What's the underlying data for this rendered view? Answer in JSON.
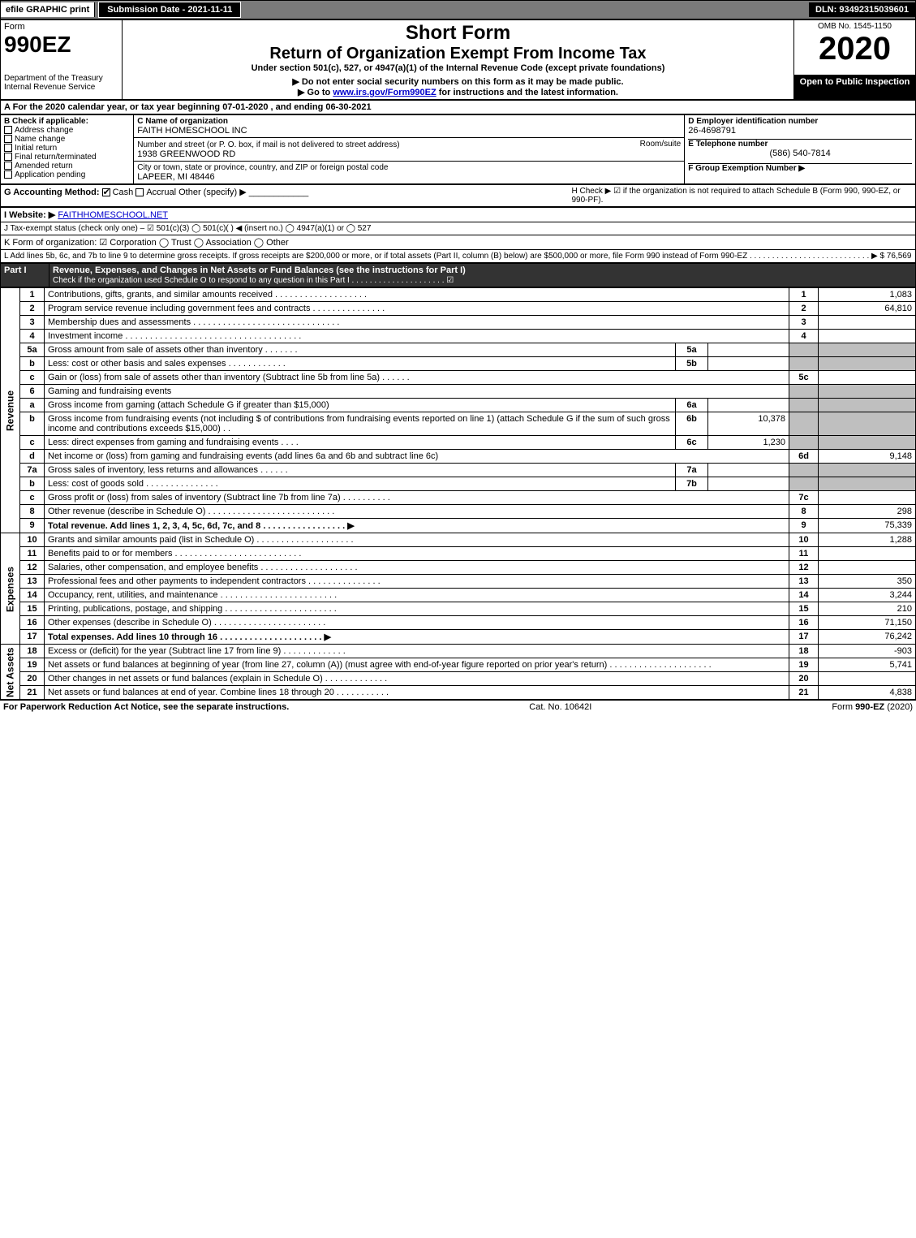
{
  "topbar": {
    "efile": "efile GRAPHIC print",
    "submission": "Submission Date - 2021-11-11",
    "dln": "DLN: 93492315039601"
  },
  "header": {
    "form_label": "Form",
    "form_no": "990EZ",
    "dept": "Department of the Treasury\nInternal Revenue Service",
    "short_form": "Short Form",
    "title": "Return of Organization Exempt From Income Tax",
    "subtitle": "Under section 501(c), 527, or 4947(a)(1) of the Internal Revenue Code (except private foundations)",
    "note1": "▶ Do not enter social security numbers on this form as it may be made public.",
    "note2": "▶ Go to www.irs.gov/Form990EZ for instructions and the latest information.",
    "omb": "OMB No. 1545-1150",
    "year": "2020",
    "open": "Open to Public Inspection"
  },
  "period": {
    "label_a": "A For the 2020 calendar year, or tax year beginning 07-01-2020 , and ending 06-30-2021"
  },
  "boxB": {
    "label": "B Check if applicable:",
    "opts": [
      "Address change",
      "Name change",
      "Initial return",
      "Final return/terminated",
      "Amended return",
      "Application pending"
    ]
  },
  "boxC": {
    "label": "C Name of organization",
    "name": "FAITH HOMESCHOOL INC",
    "addr_label": "Number and street (or P. O. box, if mail is not delivered to street address)",
    "room_label": "Room/suite",
    "addr": "1938 GREENWOOD RD",
    "city_label": "City or town, state or province, country, and ZIP or foreign postal code",
    "city": "LAPEER, MI  48446"
  },
  "boxD": {
    "label": "D Employer identification number",
    "val": "26-4698791"
  },
  "boxE": {
    "label": "E Telephone number",
    "val": "(586) 540-7814"
  },
  "boxF": {
    "label": "F Group Exemption Number ▶",
    "val": ""
  },
  "boxG": {
    "label": "G Accounting Method:",
    "cash": "Cash",
    "accrual": "Accrual",
    "other": "Other (specify) ▶"
  },
  "boxH": {
    "label": "H Check ▶ ☑ if the organization is not required to attach Schedule B (Form 990, 990-EZ, or 990-PF)."
  },
  "boxI": {
    "label": "I Website: ▶",
    "val": "FAITHHOMESCHOOL.NET"
  },
  "boxJ": {
    "label": "J Tax-exempt status (check only one) – ☑ 501(c)(3) ◯ 501(c)(  ) ◀ (insert no.) ◯ 4947(a)(1) or ◯ 527"
  },
  "boxK": {
    "label": "K Form of organization: ☑ Corporation ◯ Trust ◯ Association ◯ Other"
  },
  "boxL": {
    "label": "L Add lines 5b, 6c, and 7b to line 9 to determine gross receipts. If gross receipts are $200,000 or more, or if total assets (Part II, column (B) below) are $500,000 or more, file Form 990 instead of Form 990-EZ  .  .  .  .  .  .  .  .  .  .  .  .  .  .  .  .  .  .  .  .  .  .  .  .  .  .  .  ▶ $ 76,569"
  },
  "part1": {
    "title": "Part I",
    "heading": "Revenue, Expenses, and Changes in Net Assets or Fund Balances (see the instructions for Part I)",
    "check": "Check if the organization used Schedule O to respond to any question in this Part I .  .  .  .  .  .  .  .  .  .  .  .  .  .  .  .  .  .  .  .  .  ☑"
  },
  "sections": {
    "revenue": "Revenue",
    "expenses": "Expenses",
    "netassets": "Net Assets"
  },
  "lines": [
    {
      "n": "1",
      "txt": "Contributions, gifts, grants, and similar amounts received .  .  .  .  .  .  .  .  .  .  .  .  .  .  .  .  .  .  .",
      "num": "1",
      "val": "1,083"
    },
    {
      "n": "2",
      "txt": "Program service revenue including government fees and contracts .  .  .  .  .  .  .  .  .  .  .  .  .  .  .",
      "num": "2",
      "val": "64,810"
    },
    {
      "n": "3",
      "txt": "Membership dues and assessments .  .  .  .  .  .  .  .  .  .  .  .  .  .  .  .  .  .  .  .  .  .  .  .  .  .  .  .  .  .",
      "num": "3",
      "val": ""
    },
    {
      "n": "4",
      "txt": "Investment income .  .  .  .  .  .  .  .  .  .  .  .  .  .  .  .  .  .  .  .  .  .  .  .  .  .  .  .  .  .  .  .  .  .  .  .",
      "num": "4",
      "val": ""
    },
    {
      "n": "5a",
      "txt": "Gross amount from sale of assets other than inventory .  .  .  .  .  .  .",
      "sub": "5a",
      "subval": "",
      "gray": true
    },
    {
      "n": "b",
      "txt": "Less: cost or other basis and sales expenses .  .  .  .  .  .  .  .  .  .  .  .",
      "sub": "5b",
      "subval": "",
      "gray": true
    },
    {
      "n": "c",
      "txt": "Gain or (loss) from sale of assets other than inventory (Subtract line 5b from line 5a) .  .  .  .  .  .",
      "num": "5c",
      "val": ""
    },
    {
      "n": "6",
      "txt": "Gaming and fundraising events",
      "plain": true
    },
    {
      "n": "a",
      "txt": "Gross income from gaming (attach Schedule G if greater than $15,000)",
      "sub": "6a",
      "subval": "",
      "gray": true
    },
    {
      "n": "b",
      "txt": "Gross income from fundraising events (not including $                      of contributions from fundraising events reported on line 1) (attach Schedule G if the sum of such gross income and contributions exceeds $15,000)    .  .",
      "sub": "6b",
      "subval": "10,378",
      "gray": true
    },
    {
      "n": "c",
      "txt": "Less: direct expenses from gaming and fundraising events    .  .  .  .",
      "sub": "6c",
      "subval": "1,230",
      "gray": true
    },
    {
      "n": "d",
      "txt": "Net income or (loss) from gaming and fundraising events (add lines 6a and 6b and subtract line 6c)",
      "num": "6d",
      "val": "9,148"
    },
    {
      "n": "7a",
      "txt": "Gross sales of inventory, less returns and allowances .  .  .  .  .  .",
      "sub": "7a",
      "subval": "",
      "gray": true
    },
    {
      "n": "b",
      "txt": "Less: cost of goods sold       .  .  .  .  .  .  .  .  .  .  .  .  .  .  .",
      "sub": "7b",
      "subval": "",
      "gray": true
    },
    {
      "n": "c",
      "txt": "Gross profit or (loss) from sales of inventory (Subtract line 7b from line 7a) .  .  .  .  .  .  .  .  .  .",
      "num": "7c",
      "val": ""
    },
    {
      "n": "8",
      "txt": "Other revenue (describe in Schedule O) .  .  .  .  .  .  .  .  .  .  .  .  .  .  .  .  .  .  .  .  .  .  .  .  .  .",
      "num": "8",
      "val": "298"
    },
    {
      "n": "9",
      "txt": "Total revenue. Add lines 1, 2, 3, 4, 5c, 6d, 7c, and 8 .  .  .  .  .  .  .  .  .  .  .  .  .  .  .  .  .  ▶",
      "num": "9",
      "val": "75,339",
      "bold": true
    }
  ],
  "exp_lines": [
    {
      "n": "10",
      "txt": "Grants and similar amounts paid (list in Schedule O) .  .  .  .  .  .  .  .  .  .  .  .  .  .  .  .  .  .  .  .",
      "num": "10",
      "val": "1,288"
    },
    {
      "n": "11",
      "txt": "Benefits paid to or for members       .  .  .  .  .  .  .  .  .  .  .  .  .  .  .  .  .  .  .  .  .  .  .  .  .  .",
      "num": "11",
      "val": ""
    },
    {
      "n": "12",
      "txt": "Salaries, other compensation, and employee benefits .  .  .  .  .  .  .  .  .  .  .  .  .  .  .  .  .  .  .  .",
      "num": "12",
      "val": ""
    },
    {
      "n": "13",
      "txt": "Professional fees and other payments to independent contractors .  .  .  .  .  .  .  .  .  .  .  .  .  .  .",
      "num": "13",
      "val": "350"
    },
    {
      "n": "14",
      "txt": "Occupancy, rent, utilities, and maintenance .  .  .  .  .  .  .  .  .  .  .  .  .  .  .  .  .  .  .  .  .  .  .  .",
      "num": "14",
      "val": "3,244"
    },
    {
      "n": "15",
      "txt": "Printing, publications, postage, and shipping .  .  .  .  .  .  .  .  .  .  .  .  .  .  .  .  .  .  .  .  .  .  .",
      "num": "15",
      "val": "210"
    },
    {
      "n": "16",
      "txt": "Other expenses (describe in Schedule O)      .  .  .  .  .  .  .  .  .  .  .  .  .  .  .  .  .  .  .  .  .  .  .",
      "num": "16",
      "val": "71,150"
    },
    {
      "n": "17",
      "txt": "Total expenses. Add lines 10 through 16      .  .  .  .  .  .  .  .  .  .  .  .  .  .  .  .  .  .  .  .  .  ▶",
      "num": "17",
      "val": "76,242",
      "bold": true
    }
  ],
  "net_lines": [
    {
      "n": "18",
      "txt": "Excess or (deficit) for the year (Subtract line 17 from line 9)       .  .  .  .  .  .  .  .  .  .  .  .  .",
      "num": "18",
      "val": "-903"
    },
    {
      "n": "19",
      "txt": "Net assets or fund balances at beginning of year (from line 27, column (A)) (must agree with end-of-year figure reported on prior year's return) .  .  .  .  .  .  .  .  .  .  .  .  .  .  .  .  .  .  .  .  .",
      "num": "19",
      "val": "5,741"
    },
    {
      "n": "20",
      "txt": "Other changes in net assets or fund balances (explain in Schedule O) .  .  .  .  .  .  .  .  .  .  .  .  .",
      "num": "20",
      "val": ""
    },
    {
      "n": "21",
      "txt": "Net assets or fund balances at end of year. Combine lines 18 through 20 .  .  .  .  .  .  .  .  .  .  .",
      "num": "21",
      "val": "4,838"
    }
  ],
  "footer": {
    "left": "For Paperwork Reduction Act Notice, see the separate instructions.",
    "mid": "Cat. No. 10642I",
    "right": "Form 990-EZ (2020)"
  }
}
